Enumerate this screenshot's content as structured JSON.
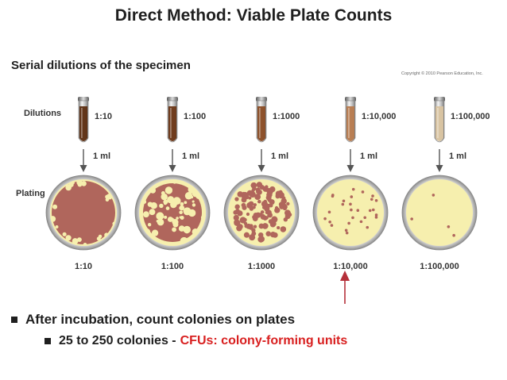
{
  "title": "Direct Method: Viable Plate Counts",
  "subtitle": "Serial dilutions of the specimen",
  "copyright": "Copyright © 2010 Pearson Education, Inc.",
  "labels": {
    "dilutions": "Dilutions",
    "plating": "Plating"
  },
  "transfer_volume": "1 ml",
  "columns": [
    {
      "dilution": "1:10",
      "tube_color": "#5c2d10",
      "colony_count": 0,
      "lawn": "dense"
    },
    {
      "dilution": "1:100",
      "tube_color": "#6a3514",
      "colony_count": 0,
      "lawn": "patchy"
    },
    {
      "dilution": "1:1000",
      "tube_color": "#8a4c24",
      "colony_count": 120,
      "lawn": "none"
    },
    {
      "dilution": "1:10,000",
      "tube_color": "#b77a4d",
      "colony_count": 28,
      "lawn": "none"
    },
    {
      "dilution": "1:100,000",
      "tube_color": "#d9c3a0",
      "colony_count": 4,
      "lawn": "none"
    }
  ],
  "colors": {
    "agar": "#f6efae",
    "colony": "#b0665c",
    "accent": "#b5303a",
    "arrow": "#555555"
  },
  "bullets": {
    "line1": "After incubation, count colonies on plates",
    "line2_prefix": "25 to 250 colonies -",
    "line2_highlight": "CFUs: colony-forming units"
  }
}
